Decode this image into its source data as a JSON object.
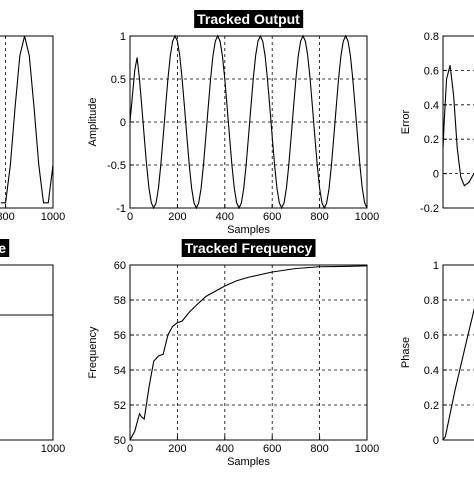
{
  "chart_data": [
    {
      "type": "line",
      "xlabel": null,
      "x": [
        780,
        800,
        820,
        840,
        860,
        880,
        900,
        920,
        940,
        960,
        980,
        1000
      ],
      "values": [
        -0.94,
        -0.94,
        -0.5,
        0.17,
        0.77,
        1,
        0.77,
        0.17,
        -0.5,
        -0.94,
        -0.94,
        -0.5
      ],
      "color": "#000000",
      "xlim": [
        0,
        1000
      ],
      "ylim": [
        -1,
        1
      ],
      "xticks": [
        800,
        1000
      ],
      "grid": true
    },
    {
      "type": "line",
      "title": "Tracked Output",
      "xlabel": "Samples",
      "ylabel": "Amplitude",
      "x": [
        0,
        10,
        20,
        30,
        40,
        50,
        60,
        70,
        80,
        90,
        100,
        110,
        120,
        130,
        140,
        150,
        160,
        170,
        180,
        190,
        200,
        210,
        220,
        230,
        240,
        250,
        260,
        270,
        280,
        290,
        300,
        310,
        320,
        330,
        340,
        350,
        360,
        370,
        380,
        390,
        400,
        410,
        420,
        430,
        440,
        450,
        460,
        470,
        480,
        490,
        500,
        510,
        520,
        530,
        540,
        550,
        560,
        570,
        580,
        590,
        600,
        610,
        620,
        630,
        640,
        650,
        660,
        670,
        680,
        690,
        700,
        710,
        720,
        730,
        740,
        750,
        760,
        770,
        780,
        790,
        800,
        810,
        820,
        830,
        840,
        850,
        860,
        870,
        880,
        890,
        900,
        910,
        920,
        930,
        940,
        950,
        960,
        970,
        980,
        990,
        1000
      ],
      "values": [
        0,
        0.3,
        0.6,
        0.75,
        0.5,
        0.17,
        -0.17,
        -0.5,
        -0.77,
        -0.94,
        -1,
        -0.94,
        -0.77,
        -0.5,
        -0.17,
        0.17,
        0.5,
        0.77,
        0.94,
        1,
        0.94,
        0.77,
        0.5,
        0.17,
        -0.17,
        -0.5,
        -0.77,
        -0.94,
        -1,
        -0.94,
        -0.77,
        -0.5,
        -0.17,
        0.17,
        0.5,
        0.77,
        0.94,
        1,
        0.94,
        0.77,
        0.5,
        0.17,
        -0.17,
        -0.5,
        -0.77,
        -0.94,
        -1,
        -0.94,
        -0.77,
        -0.5,
        -0.17,
        0.17,
        0.5,
        0.77,
        0.94,
        1,
        0.94,
        0.77,
        0.5,
        0.17,
        -0.17,
        -0.5,
        -0.77,
        -0.94,
        -1,
        -0.94,
        -0.77,
        -0.5,
        -0.17,
        0.17,
        0.5,
        0.77,
        0.94,
        1,
        0.94,
        0.77,
        0.5,
        0.17,
        -0.17,
        -0.5,
        -0.77,
        -0.94,
        -1,
        -0.94,
        -0.77,
        -0.5,
        -0.17,
        0.17,
        0.5,
        0.77,
        0.94,
        1,
        0.94,
        0.77,
        0.5,
        0.17,
        -0.17,
        -0.5,
        -0.77,
        -0.94,
        -1
      ],
      "color": "#000000",
      "xlim": [
        0,
        1000
      ],
      "ylim": [
        -1,
        1
      ],
      "xticks": [
        0,
        200,
        400,
        600,
        800,
        1000
      ],
      "yticks": [
        -1,
        -0.5,
        0,
        0.5,
        1
      ],
      "grid": true
    },
    {
      "type": "line",
      "ylabel": "Error",
      "x": [
        0,
        5,
        15,
        30,
        45,
        60,
        75,
        90,
        110,
        130,
        150
      ],
      "values": [
        0.15,
        0.3,
        0.55,
        0.63,
        0.45,
        0.15,
        -0.02,
        -0.07,
        -0.05,
        0,
        0.02
      ],
      "color": "#000000",
      "xlim": [
        0,
        1000
      ],
      "ylim": [
        -0.2,
        0.8
      ],
      "yticks": [
        -0.2,
        0,
        0.2,
        0.4,
        0.6,
        0.8
      ],
      "grid": true
    },
    {
      "type": "line",
      "title": "e",
      "x": [
        0,
        1000
      ],
      "values": [
        5,
        5
      ],
      "color": "#000000",
      "xlim": [
        0,
        1000
      ],
      "ylim": [
        0,
        7
      ],
      "xticks": [
        1000
      ],
      "grid": true
    },
    {
      "type": "line",
      "title": "Tracked Frequency",
      "xlabel": "Samples",
      "ylabel": "Frequency",
      "x": [
        0,
        20,
        40,
        50,
        60,
        80,
        100,
        120,
        140,
        160,
        180,
        200,
        220,
        250,
        280,
        320,
        360,
        400,
        450,
        500,
        600,
        700,
        800,
        900,
        1000
      ],
      "values": [
        50,
        50.5,
        51.5,
        51.3,
        51.2,
        53,
        54.5,
        54.8,
        54.9,
        56,
        56.5,
        56.7,
        56.8,
        57.3,
        57.7,
        58.2,
        58.5,
        58.8,
        59.1,
        59.3,
        59.6,
        59.8,
        59.9,
        59.92,
        59.95
      ],
      "color": "#000000",
      "xlim": [
        0,
        1000
      ],
      "ylim": [
        50,
        60
      ],
      "xticks": [
        0,
        200,
        400,
        600,
        800,
        1000
      ],
      "yticks": [
        50,
        52,
        54,
        56,
        58,
        60
      ],
      "grid": true
    },
    {
      "type": "line",
      "ylabel": "Phase",
      "x": [
        0,
        10,
        50,
        100,
        150
      ],
      "values": [
        0,
        0.02,
        0.28,
        0.57,
        0.85
      ],
      "color": "#000000",
      "xlim": [
        0,
        1000
      ],
      "ylim": [
        0,
        1
      ],
      "yticks": [
        0,
        0.2,
        0.4,
        0.6,
        0.8,
        1
      ],
      "grid": true
    }
  ]
}
